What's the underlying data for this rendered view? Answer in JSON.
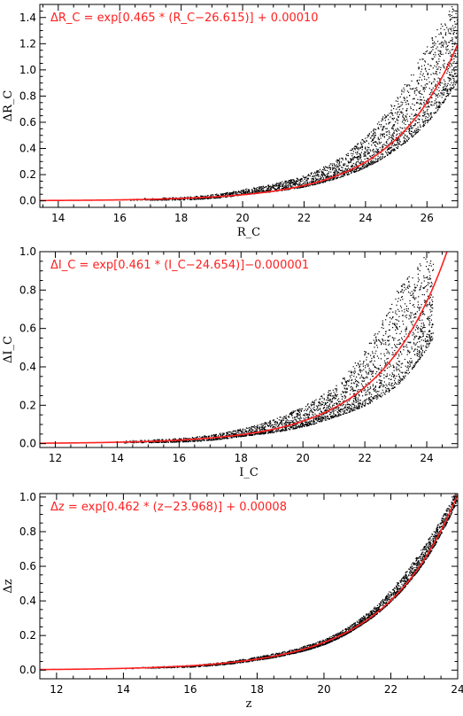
{
  "chart_data": [
    {
      "type": "scatter",
      "title": "",
      "xlabel": "R_C",
      "ylabel": "ΔR_C",
      "xlim": [
        13.4,
        27.0
      ],
      "ylim": [
        -0.05,
        1.5
      ],
      "xticks": [
        14,
        16,
        18,
        20,
        22,
        24,
        26
      ],
      "yticks": [
        0.0,
        0.2,
        0.4,
        0.6,
        0.8,
        1.0,
        1.2,
        1.4
      ],
      "fit": {
        "a": 0.465,
        "x0": 26.615,
        "c": 0.0001,
        "color": "#ff2020"
      },
      "formula_text": "ΔR_C = exp[0.465 * (R_C−26.615)] + 0.00010",
      "scatter_note": "dense black point cloud above fit, spreading with magnitude",
      "x_start": 13.4,
      "scatter_envelope": [
        {
          "x": 18,
          "low": 0.01,
          "high": 0.03
        },
        {
          "x": 20,
          "low": 0.05,
          "high": 0.09
        },
        {
          "x": 22,
          "low": 0.11,
          "high": 0.2
        },
        {
          "x": 23,
          "low": 0.17,
          "high": 0.31
        },
        {
          "x": 24,
          "low": 0.26,
          "high": 0.5
        },
        {
          "x": 25,
          "low": 0.4,
          "high": 0.8
        },
        {
          "x": 26,
          "low": 0.6,
          "high": 1.2
        },
        {
          "x": 26.8,
          "low": 0.85,
          "high": 1.5
        }
      ],
      "grid": false
    },
    {
      "type": "scatter",
      "title": "",
      "xlabel": "I_C",
      "ylabel": "ΔI_C",
      "xlim": [
        11.5,
        25.0
      ],
      "ylim": [
        -0.02,
        1.0
      ],
      "xticks": [
        12,
        14,
        16,
        18,
        20,
        22,
        24
      ],
      "yticks": [
        0.0,
        0.2,
        0.4,
        0.6,
        0.8,
        1.0
      ],
      "fit": {
        "a": 0.461,
        "x0": 24.654,
        "c": -1e-06,
        "color": "#ff2020"
      },
      "formula_text": "ΔI_C = exp[0.461 * (I_C−24.654)]−0.000001",
      "x_start": 11.5,
      "scatter_envelope": [
        {
          "x": 16,
          "low": 0.01,
          "high": 0.03
        },
        {
          "x": 18,
          "low": 0.04,
          "high": 0.08
        },
        {
          "x": 20,
          "low": 0.09,
          "high": 0.2
        },
        {
          "x": 21,
          "low": 0.14,
          "high": 0.3
        },
        {
          "x": 22,
          "low": 0.2,
          "high": 0.5
        },
        {
          "x": 23,
          "low": 0.3,
          "high": 0.8
        },
        {
          "x": 24,
          "low": 0.5,
          "high": 1.0
        }
      ],
      "grid": false
    },
    {
      "type": "scatter",
      "title": "",
      "xlabel": "z",
      "ylabel": "Δz",
      "xlim": [
        11.5,
        24.0
      ],
      "ylim": [
        -0.05,
        1.02
      ],
      "xticks": [
        12,
        14,
        16,
        18,
        20,
        22,
        24
      ],
      "yticks": [
        0.0,
        0.2,
        0.4,
        0.6,
        0.8,
        1.0
      ],
      "fit": {
        "a": 0.462,
        "x0": 23.968,
        "c": 8e-05,
        "color": "#ff2020"
      },
      "formula_text": "Δz = exp[0.462 * (z−23.968)] + 0.00008",
      "x_start": 11.5,
      "scatter_envelope": [
        {
          "x": 16,
          "low": 0.02,
          "high": 0.03
        },
        {
          "x": 18,
          "low": 0.06,
          "high": 0.08
        },
        {
          "x": 20,
          "low": 0.15,
          "high": 0.18
        },
        {
          "x": 21,
          "low": 0.25,
          "high": 0.29
        },
        {
          "x": 22,
          "low": 0.4,
          "high": 0.47
        },
        {
          "x": 23,
          "low": 0.63,
          "high": 0.73
        },
        {
          "x": 23.9,
          "low": 0.95,
          "high": 1.02
        }
      ],
      "grid": false
    }
  ]
}
